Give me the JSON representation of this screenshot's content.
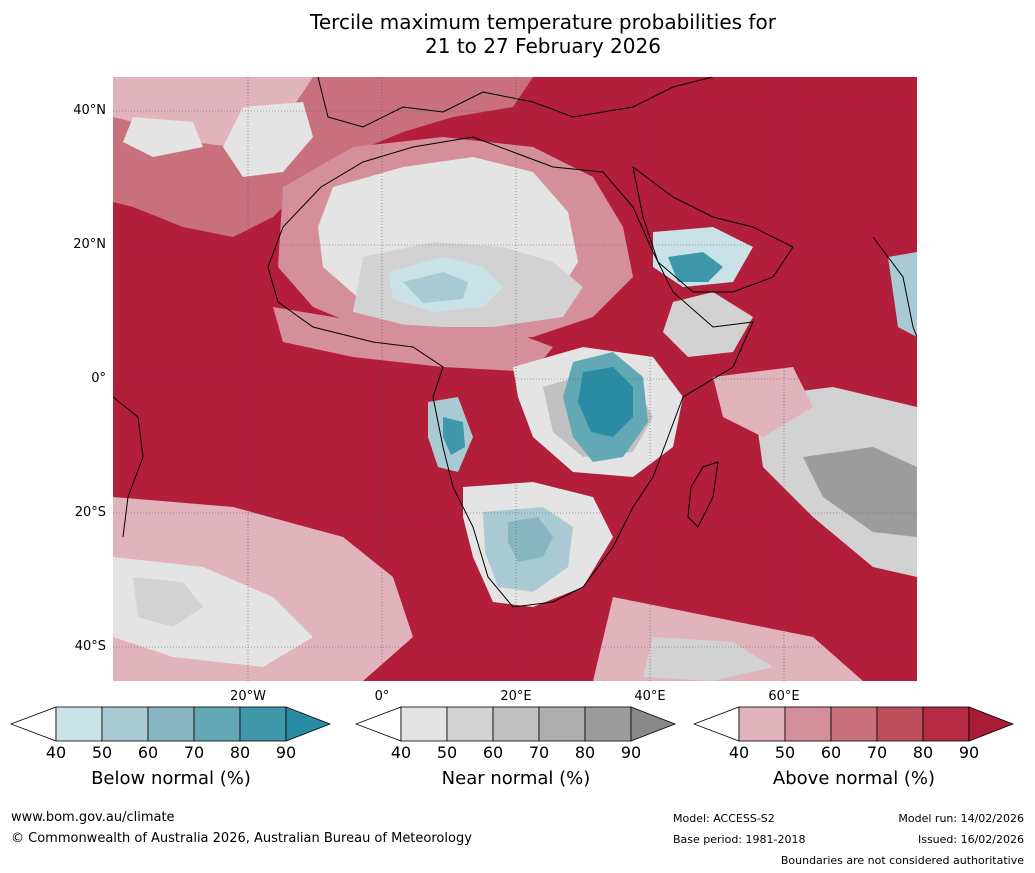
{
  "title": {
    "line1": "Tercile maximum temperature probabilities for",
    "line2": "21 to 27 February 2026"
  },
  "map": {
    "lat_labels": [
      "40°N",
      "20°N",
      "0°",
      "20°S",
      "40°S"
    ],
    "lon_labels": [
      "20°W",
      "0°",
      "20°E",
      "40°E",
      "60°E"
    ],
    "colors": {
      "ocean_above": "#b31f3a",
      "above_levels": [
        "#e0b3bd",
        "#d48f9a",
        "#c8707c",
        "#bd4f5d",
        "#b52b43",
        "#a81c35"
      ],
      "near_levels": [
        "#e4e4e4",
        "#d2d2d2",
        "#c0c0c0",
        "#aeaeae",
        "#9c9c9c",
        "#888888"
      ],
      "below_levels": [
        "#c9e2e8",
        "#a9cad2",
        "#87b6c1",
        "#63a8b5",
        "#3e98aa",
        "#2a8ca2"
      ]
    }
  },
  "legend": {
    "below": {
      "label": "Below normal (%)",
      "ticks": [
        "40",
        "50",
        "60",
        "70",
        "80",
        "90"
      ],
      "colors": [
        "#ffffff",
        "#c9e2e8",
        "#a9cad2",
        "#87b6c1",
        "#63a8b5",
        "#3e98aa",
        "#2a8ca2"
      ]
    },
    "near": {
      "label": "Near normal (%)",
      "ticks": [
        "40",
        "50",
        "60",
        "70",
        "80",
        "90"
      ],
      "colors": [
        "#ffffff",
        "#e4e4e4",
        "#d2d2d2",
        "#c0c0c0",
        "#aeaeae",
        "#9c9c9c",
        "#888888"
      ]
    },
    "above": {
      "label": "Above normal (%)",
      "ticks": [
        "40",
        "50",
        "60",
        "70",
        "80",
        "90"
      ],
      "colors": [
        "#ffffff",
        "#e0b3bd",
        "#d48f9a",
        "#c8707c",
        "#bd4f5d",
        "#b52b43",
        "#a81c35"
      ]
    }
  },
  "footer": {
    "website": "www.bom.gov.au/climate",
    "copyright": "© Commonwealth of Australia 2026, Australian Bureau of Meteorology",
    "model": "Model: ACCESS-S2",
    "base_period": "Base period: 1981-2018",
    "model_run": "Model run: 14/02/2026",
    "issued": "Issued: 16/02/2026",
    "disclaimer": "Boundaries are not considered authoritative"
  }
}
